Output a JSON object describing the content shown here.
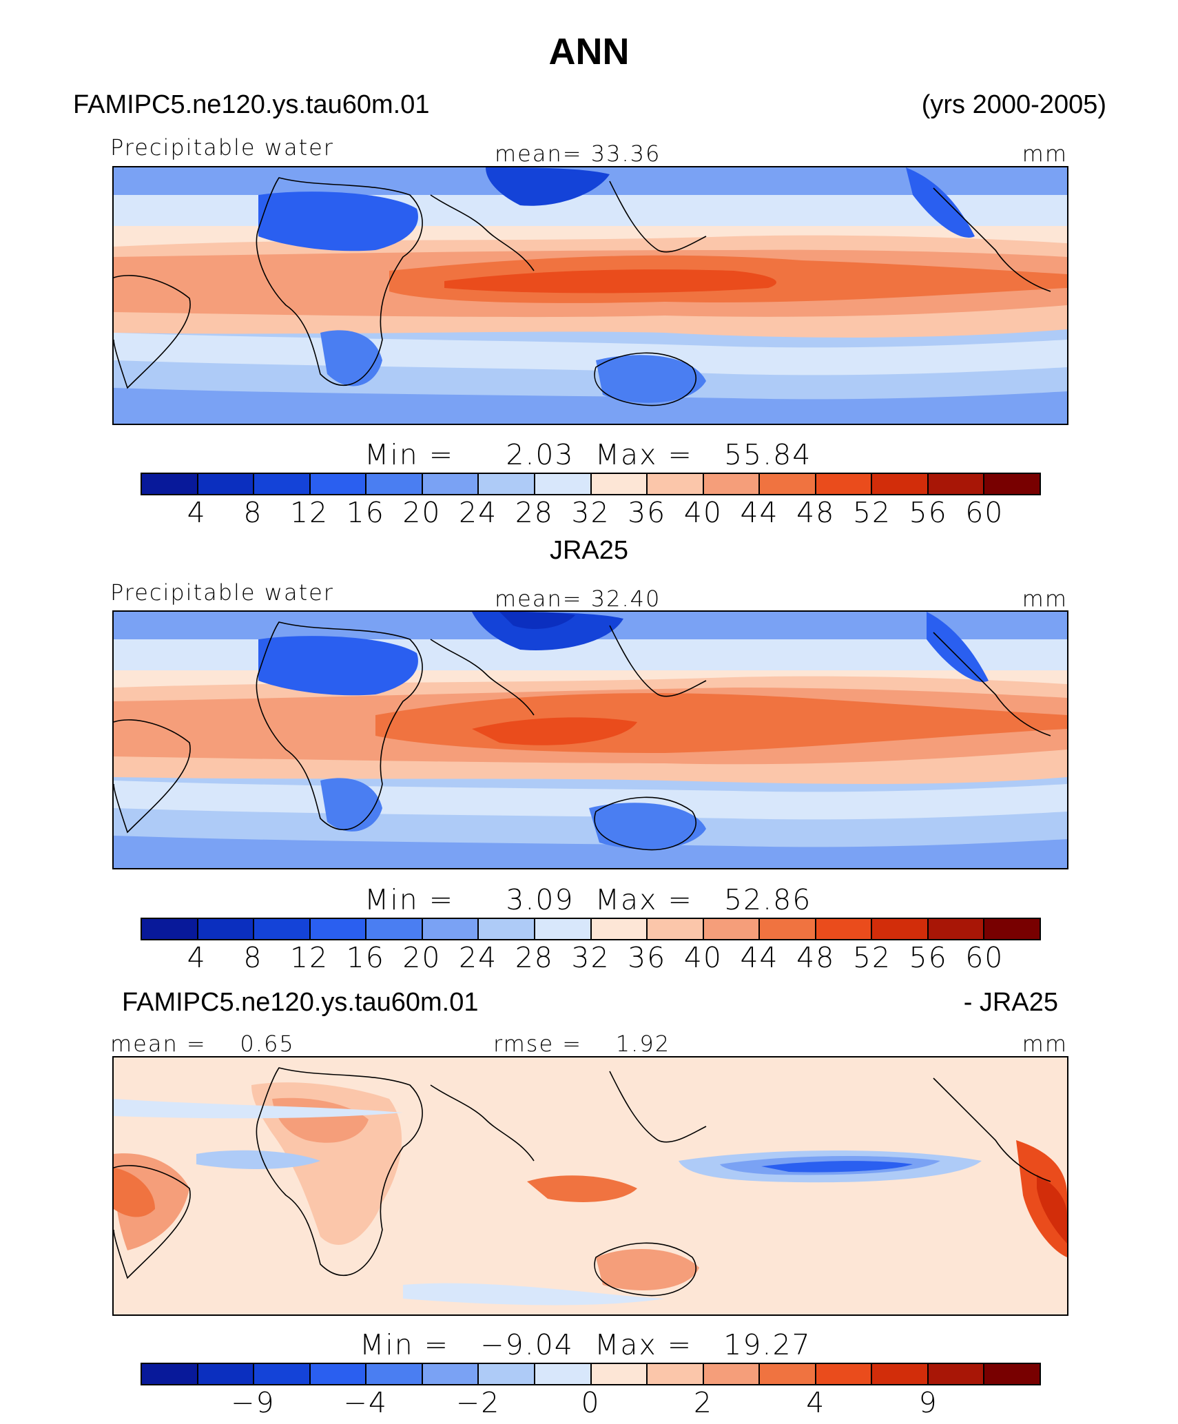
{
  "title": "ANN",
  "panel1": {
    "case_name": "FAMIPC5.ne120.ys.tau60m.01",
    "years": "(yrs 2000-2005)",
    "variable": "Precipitable water",
    "mean_label": "mean=",
    "mean_value": "33.36",
    "units": "mm",
    "min_label": "Min  =",
    "min_value": "2.03",
    "max_label": "Max  =",
    "max_value": "55.84"
  },
  "panel2": {
    "case_name": "JRA25",
    "variable": "Precipitable water",
    "mean_label": "mean=",
    "mean_value": "32.40",
    "units": "mm",
    "min_label": "Min  =",
    "min_value": "3.09",
    "max_label": "Max  =",
    "max_value": "52.86"
  },
  "panel3": {
    "case_name": "FAMIPC5.ne120.ys.tau60m.01",
    "minus_label": "- JRA25",
    "mean_label": "mean =",
    "mean_value": "0.65",
    "rmse_label": "rmse =",
    "rmse_value": "1.92",
    "units": "mm",
    "min_label": "Min  =",
    "min_value": "−9.04",
    "max_label": "Max  =",
    "max_value": "19.27"
  },
  "chart_data": [
    {
      "type": "heatmap",
      "title": "FAMIPC5.ne120.ys.tau60m.01 Precipitable water",
      "units": "mm",
      "mean": 33.36,
      "min": 2.03,
      "max": 55.84,
      "colorbar_levels": [
        4,
        8,
        12,
        16,
        20,
        24,
        28,
        32,
        36,
        40,
        44,
        48,
        52,
        56,
        60
      ],
      "colorbar_tick_labels": [
        "4",
        "8",
        "12",
        "16",
        "20",
        "24",
        "28",
        "32",
        "36",
        "40",
        "44",
        "48",
        "52",
        "56",
        "60"
      ],
      "colors": [
        "#08199a",
        "#0b2fbf",
        "#1443d8",
        "#2a5ff0",
        "#4a7ef2",
        "#7aa2f4",
        "#aecbf7",
        "#d8e7fb",
        "#fde6d6",
        "#fbc6aa",
        "#f59e7a",
        "#f07340",
        "#ea4c1c",
        "#d22d0a",
        "#a81606",
        "#780000"
      ]
    },
    {
      "type": "heatmap",
      "title": "JRA25 Precipitable water",
      "units": "mm",
      "mean": 32.4,
      "min": 3.09,
      "max": 52.86,
      "colorbar_levels": [
        4,
        8,
        12,
        16,
        20,
        24,
        28,
        32,
        36,
        40,
        44,
        48,
        52,
        56,
        60
      ],
      "colorbar_tick_labels": [
        "4",
        "8",
        "12",
        "16",
        "20",
        "24",
        "28",
        "32",
        "36",
        "40",
        "44",
        "48",
        "52",
        "56",
        "60"
      ],
      "colors": [
        "#08199a",
        "#0b2fbf",
        "#1443d8",
        "#2a5ff0",
        "#4a7ef2",
        "#7aa2f4",
        "#aecbf7",
        "#d8e7fb",
        "#fde6d6",
        "#fbc6aa",
        "#f59e7a",
        "#f07340",
        "#ea4c1c",
        "#d22d0a",
        "#a81606",
        "#780000"
      ]
    },
    {
      "type": "heatmap",
      "title": "FAMIPC5.ne120.ys.tau60m.01 - JRA25",
      "units": "mm",
      "mean": 0.65,
      "rmse": 1.92,
      "min": -9.04,
      "max": 19.27,
      "colorbar_tick_labels": [
        "−9",
        "−4",
        "−2",
        "0",
        "2",
        "4",
        "9"
      ],
      "colors": [
        "#08199a",
        "#0b2fbf",
        "#1443d8",
        "#2a5ff0",
        "#4a7ef2",
        "#7aa2f4",
        "#aecbf7",
        "#d8e7fb",
        "#fde6d6",
        "#fbc6aa",
        "#f59e7a",
        "#f07340",
        "#ea4c1c",
        "#d22d0a",
        "#a81606",
        "#780000"
      ]
    }
  ]
}
